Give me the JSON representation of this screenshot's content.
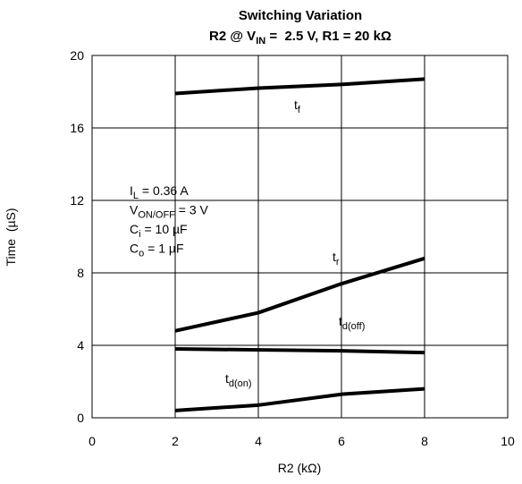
{
  "chart_data": {
    "type": "line",
    "title": "Switching Variation",
    "subtitle": {
      "text": "R2 @ V",
      "sub": "IN",
      "rest": " =  2.5 V, R1 = 20 kΩ"
    },
    "x_label": "R2 (kΩ)",
    "y_label": "Time  (µS)",
    "x": [
      2,
      4,
      6,
      8
    ],
    "series": [
      {
        "name": "t",
        "name_sub": "f",
        "color": "#000000",
        "values": [
          17.9,
          18.2,
          18.4,
          18.7
        ]
      },
      {
        "name": "t",
        "name_sub": "r",
        "color": "#000000",
        "values": [
          4.8,
          5.8,
          7.4,
          8.8
        ]
      },
      {
        "name": "t",
        "name_sub": "d(off)",
        "color": "#000000",
        "values": [
          3.8,
          3.75,
          3.7,
          3.6
        ]
      },
      {
        "name": "t",
        "name_sub": "d(on)",
        "color": "#000000",
        "values": [
          0.4,
          0.7,
          1.3,
          1.6
        ]
      }
    ],
    "annotations": [
      {
        "text": "I",
        "sub": "L",
        "rest": " = 0.36 A"
      },
      {
        "text": "V",
        "sub": "ON/OFF",
        "rest": " = 3 V"
      },
      {
        "text": "C",
        "sub": "i",
        "rest": " = 10 µF"
      },
      {
        "text": "C",
        "sub": "o",
        "rest": " = 1 µF"
      }
    ],
    "xlim": [
      0,
      10
    ],
    "xticks": [
      0,
      2,
      4,
      6,
      8,
      10
    ],
    "ylim": [
      0,
      20
    ],
    "yticks": [
      0,
      4,
      8,
      12,
      16,
      20
    ],
    "grid": true
  }
}
